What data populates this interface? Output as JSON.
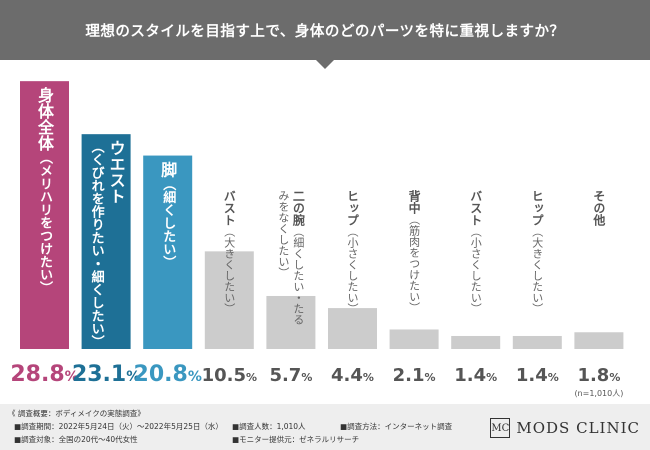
{
  "header": {
    "title": "理想のスタイルを目指す上で、身体のどのパーツを特に重視しますか？"
  },
  "chart_data": {
    "type": "bar",
    "title": "理想のスタイルを目指す上で、身体のどのパーツを特に重視しますか？",
    "categories": [
      {
        "main": "身体全体",
        "sub": "（メリハリをつけたい）"
      },
      {
        "main": "ウエスト",
        "sub": "（くびれを作りたい・細くしたい）"
      },
      {
        "main": "脚",
        "sub": "（細くしたい）"
      },
      {
        "main": "バスト",
        "sub": "（大きくしたい）"
      },
      {
        "main": "二の腕",
        "sub": "（細くしたい・たるみをなくしたい）"
      },
      {
        "main": "ヒップ",
        "sub": "（小さくしたい）"
      },
      {
        "main": "背中",
        "sub": "（筋肉をつけたい）"
      },
      {
        "main": "バスト",
        "sub": "（小さくしたい）"
      },
      {
        "main": "ヒップ",
        "sub": "（大きくしたい）"
      },
      {
        "main": "その他",
        "sub": ""
      }
    ],
    "values": [
      28.8,
      23.1,
      20.8,
      10.5,
      5.7,
      4.4,
      2.1,
      1.4,
      1.4,
      1.8
    ],
    "value_labels": [
      "28.8%",
      "23.1%",
      "20.8%",
      "10.5%",
      "5.7%",
      "4.4%",
      "2.1%",
      "1.4%",
      "1.4%",
      "1.8%"
    ],
    "colors": [
      "#b5457a",
      "#1e7096",
      "#3a97c0",
      "#cccccc",
      "#cccccc",
      "#cccccc",
      "#cccccc",
      "#cccccc",
      "#cccccc",
      "#cccccc"
    ],
    "value_colors": [
      "#b5457a",
      "#1e7096",
      "#3a97c0",
      "#555555",
      "#555555",
      "#555555",
      "#555555",
      "#555555",
      "#555555",
      "#555555"
    ],
    "label_colors": [
      "#ffffff",
      "#ffffff",
      "#ffffff",
      "#555555",
      "#555555",
      "#555555",
      "#555555",
      "#555555",
      "#555555",
      "#555555"
    ],
    "sample_note": "(n=1,010人)",
    "ylim": [
      0,
      30
    ]
  },
  "footer": {
    "overview": "《 調査概要：ボディメイクの実態調査》",
    "period": "■調査期間：2022年5月24日（火）～2022年5月25日（水）",
    "people": "■調査人数：1,010人",
    "method": "■調査方法：インターネット調査",
    "target": "■調査対象：全国の20代～40代女性",
    "provider": "■モニター提供元：ゼネラルリサーチ",
    "logo_mark": "MC",
    "logo_text": "MODS CLINIC"
  }
}
